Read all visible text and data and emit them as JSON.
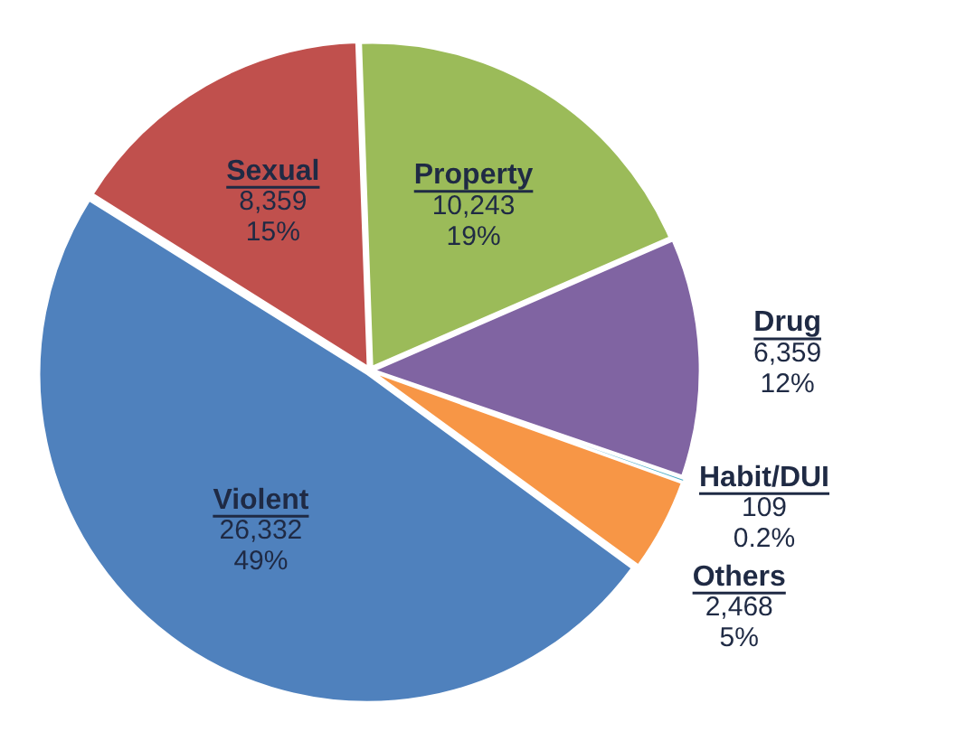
{
  "chart_data": {
    "type": "pie",
    "categories": [
      "Property",
      "Drug",
      "Habit/DUI",
      "Others",
      "Violent",
      "Sexual"
    ],
    "values": [
      10243,
      6359,
      109,
      2468,
      26332,
      8359
    ],
    "colors": [
      "#9bbb59",
      "#8064a2",
      "#4bacc6",
      "#f79646",
      "#4f81bd",
      "#c0504d"
    ],
    "value_labels": [
      "10,243\n19%",
      "6,359\n12%",
      "109\n0.2%",
      "2,468\n5%",
      "26,332\n49%",
      "8,359\n15%"
    ],
    "legend": false
  }
}
